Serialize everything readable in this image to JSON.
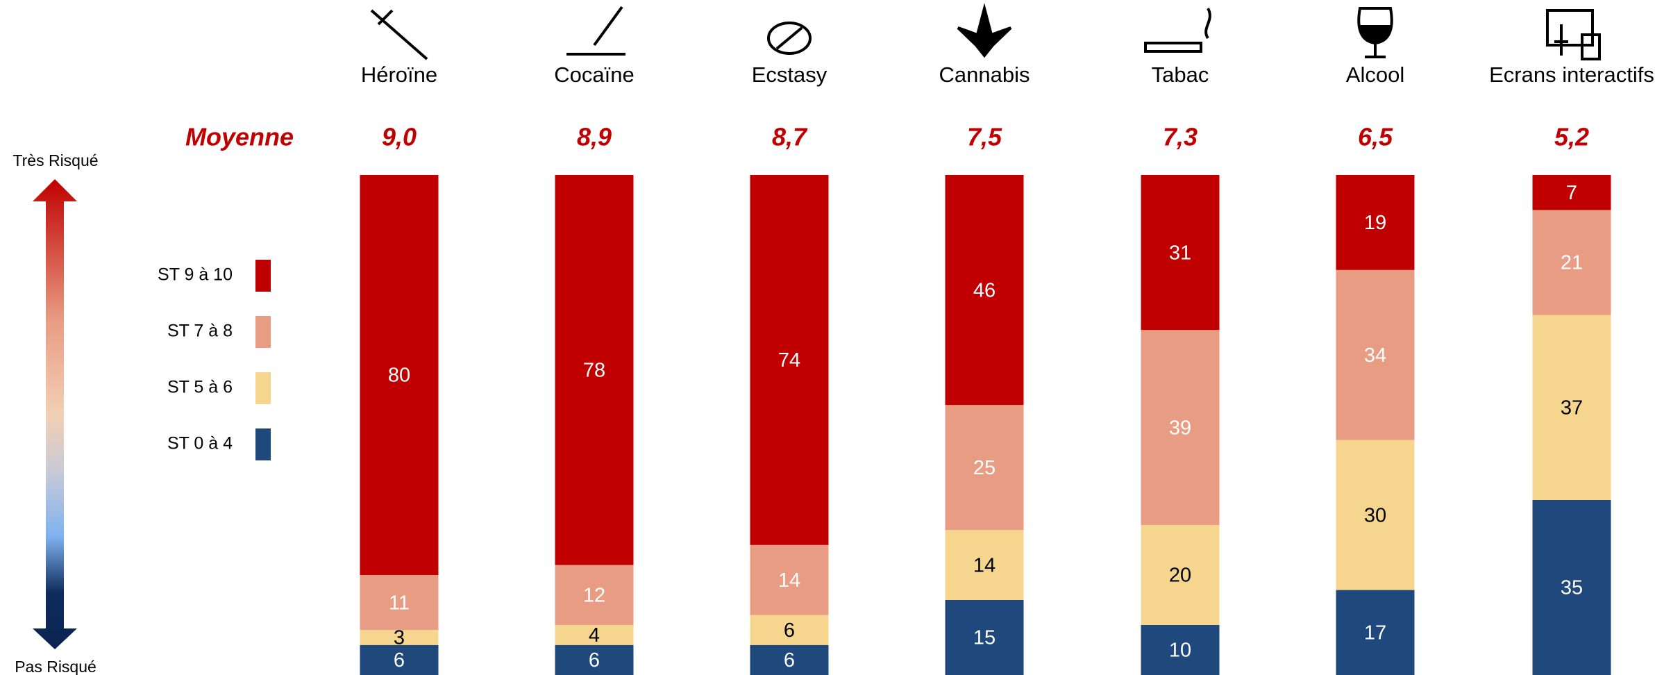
{
  "chart_data": {
    "type": "stacked-bar",
    "categories": [
      "Héroïne",
      "Cocaïne",
      "Ecstasy",
      "Cannabis",
      "Tabac",
      "Alcool",
      "Ecrans interactifs"
    ],
    "mean_title": "Moyenne",
    "means": [
      "9,0",
      "8,9",
      "8,7",
      "7,5",
      "7,3",
      "6,5",
      "5,2"
    ],
    "axis_top": "Très Risqué",
    "axis_bottom": "Pas Risqué",
    "series": [
      {
        "name": "ST 9 à 10",
        "color": "#c00000",
        "label_color": "#ffffff",
        "values": [
          80,
          78,
          74,
          46,
          31,
          19,
          7
        ]
      },
      {
        "name": "ST 7 à 8",
        "color": "#e99c84",
        "label_color": "#ffffff",
        "values": [
          11,
          12,
          14,
          25,
          39,
          34,
          21
        ]
      },
      {
        "name": "ST 5 à 6",
        "color": "#f6d58f",
        "label_color": "#000000",
        "values": [
          3,
          4,
          6,
          14,
          20,
          30,
          37
        ]
      },
      {
        "name": "ST 0 à 4",
        "color": "#1f497d",
        "label_color": "#ffffff",
        "values": [
          6,
          6,
          6,
          15,
          10,
          17,
          35
        ]
      }
    ],
    "ylim": [
      0,
      100
    ]
  }
}
